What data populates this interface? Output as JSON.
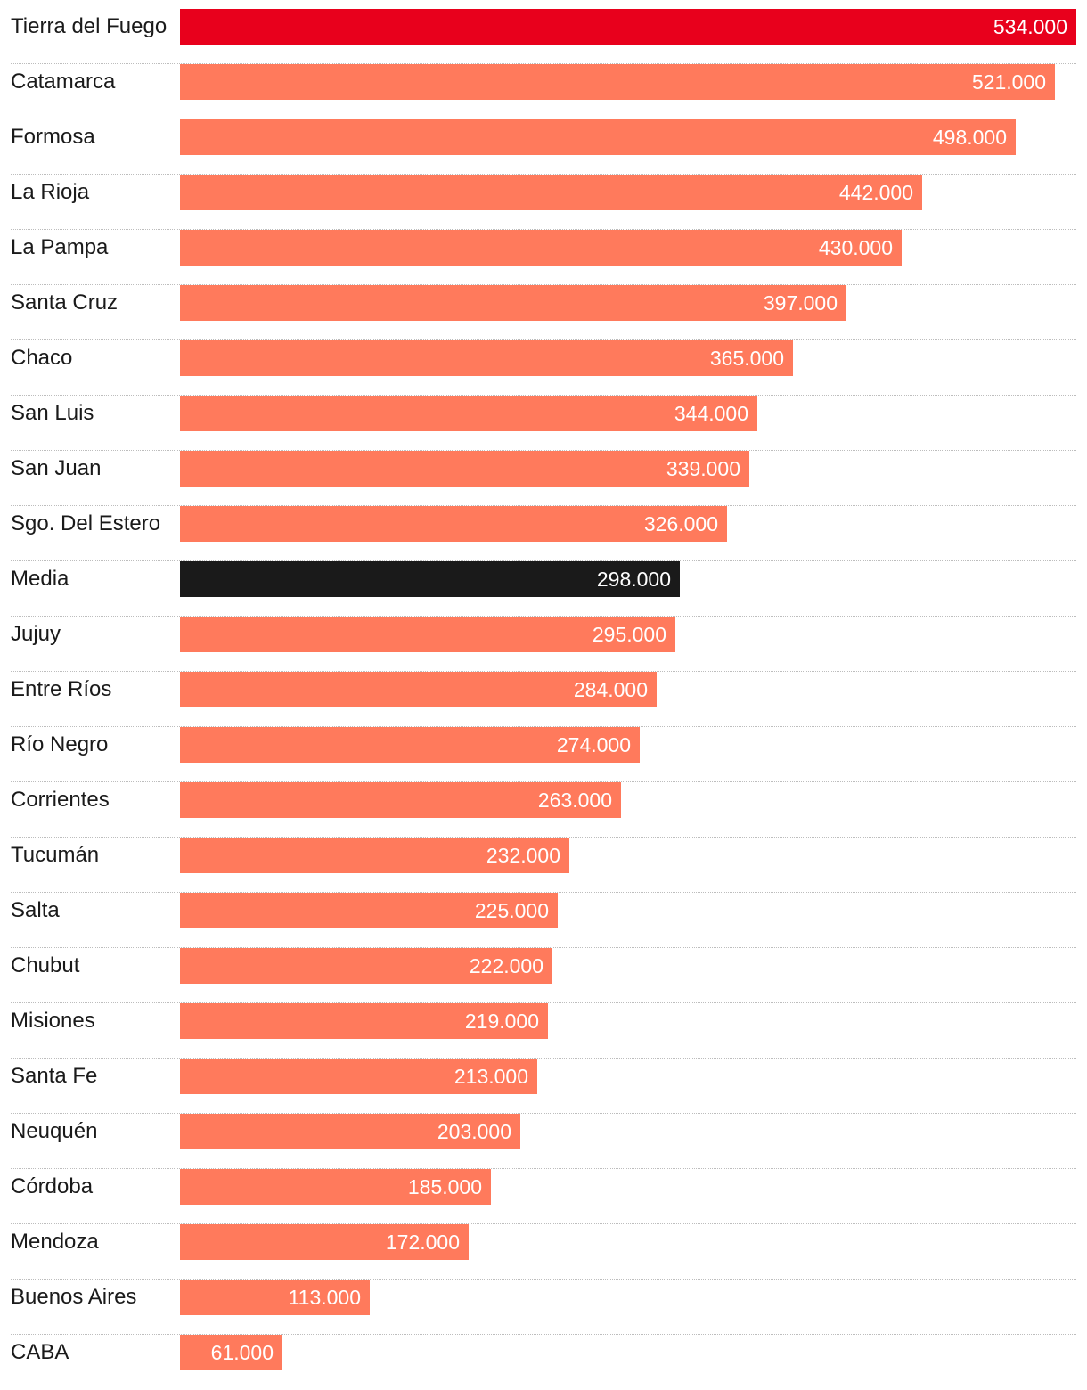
{
  "chart_data": {
    "type": "bar",
    "orientation": "horizontal",
    "title": "",
    "xlabel": "",
    "ylabel": "",
    "xlim": [
      0,
      534000
    ],
    "grid": false,
    "categories": [
      "Tierra del Fuego",
      "Catamarca",
      "Formosa",
      "La Rioja",
      "La Pampa",
      "Santa Cruz",
      "Chaco",
      "San Luis",
      "San Juan",
      "Sgo. Del Estero",
      "Media",
      "Jujuy",
      "Entre Ríos",
      "Río Negro",
      "Corrientes",
      "Tucumán",
      "Salta",
      "Chubut",
      "Misiones",
      "Santa Fe",
      "Neuquén",
      "Córdoba",
      "Mendoza",
      "Buenos Aires",
      "CABA"
    ],
    "values": [
      534000,
      521000,
      498000,
      442000,
      430000,
      397000,
      365000,
      344000,
      339000,
      326000,
      298000,
      295000,
      284000,
      274000,
      263000,
      232000,
      225000,
      222000,
      219000,
      213000,
      203000,
      185000,
      172000,
      113000,
      61000
    ],
    "value_labels": [
      "534.000",
      "521.000",
      "498.000",
      "442.000",
      "430.000",
      "397.000",
      "365.000",
      "344.000",
      "339.000",
      "326.000",
      "298.000",
      "295.000",
      "284.000",
      "274.000",
      "263.000",
      "232.000",
      "225.000",
      "222.000",
      "219.000",
      "213.000",
      "203.000",
      "185.000",
      "172.000",
      "113.000",
      "61.000"
    ],
    "colors": {
      "default": "#ff7a5c",
      "highlight_max": "#e8001c",
      "average": "#1a1a1a"
    },
    "bar_color_roles": [
      "highlight_max",
      "default",
      "default",
      "default",
      "default",
      "default",
      "default",
      "default",
      "default",
      "default",
      "average",
      "default",
      "default",
      "default",
      "default",
      "default",
      "default",
      "default",
      "default",
      "default",
      "default",
      "default",
      "default",
      "default",
      "default"
    ]
  }
}
